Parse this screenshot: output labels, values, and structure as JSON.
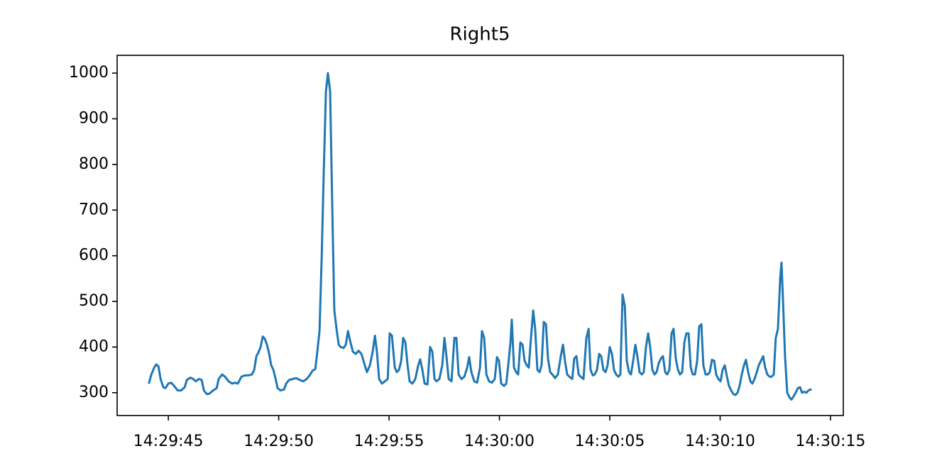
{
  "chart_data": {
    "type": "line",
    "title": "Right5",
    "color": "#1f77b4",
    "grid": false,
    "x": [
      52184.13,
      52184.23,
      52184.36,
      52184.45,
      52184.55,
      52184.65,
      52184.77,
      52184.87,
      52185.0,
      52185.13,
      52185.26,
      52185.42,
      52185.58,
      52185.74,
      52185.84,
      52186.0,
      52186.13,
      52186.25,
      52186.38,
      52186.51,
      52186.61,
      52186.74,
      52186.86,
      52187.03,
      52187.19,
      52187.28,
      52187.44,
      52187.57,
      52187.73,
      52187.89,
      52188.02,
      52188.15,
      52188.31,
      52188.47,
      52188.63,
      52188.79,
      52188.89,
      52188.99,
      52189.08,
      52189.18,
      52189.28,
      52189.37,
      52189.47,
      52189.57,
      52189.66,
      52189.76,
      52189.86,
      52189.95,
      52190.08,
      52190.24,
      52190.34,
      52190.47,
      52190.63,
      52190.79,
      52190.95,
      52191.11,
      52191.27,
      52191.43,
      52191.53,
      52191.66,
      52191.75,
      52191.85,
      52191.95,
      52192.04,
      52192.14,
      52192.23,
      52192.33,
      52192.43,
      52192.52,
      52192.62,
      52192.72,
      52192.81,
      52192.94,
      52193.04,
      52193.14,
      52193.23,
      52193.36,
      52193.49,
      52193.62,
      52193.75,
      52193.87,
      52194.0,
      52194.13,
      52194.26,
      52194.36,
      52194.45,
      52194.55,
      52194.68,
      52194.81,
      52194.94,
      52195.03,
      52195.13,
      52195.26,
      52195.35,
      52195.45,
      52195.55,
      52195.64,
      52195.74,
      52195.84,
      52195.93,
      52196.06,
      52196.19,
      52196.32,
      52196.41,
      52196.51,
      52196.61,
      52196.74,
      52196.86,
      52196.96,
      52197.06,
      52197.15,
      52197.28,
      52197.41,
      52197.51,
      52197.6,
      52197.7,
      52197.83,
      52197.96,
      52198.05,
      52198.15,
      52198.28,
      52198.41,
      52198.54,
      52198.63,
      52198.73,
      52198.86,
      52198.99,
      52199.12,
      52199.21,
      52199.31,
      52199.41,
      52199.53,
      52199.66,
      52199.79,
      52199.89,
      52199.98,
      52200.08,
      52200.21,
      52200.31,
      52200.4,
      52200.5,
      52200.56,
      52200.66,
      52200.76,
      52200.85,
      52200.95,
      52201.05,
      52201.14,
      52201.24,
      52201.33,
      52201.43,
      52201.53,
      52201.62,
      52201.72,
      52201.82,
      52201.91,
      52202.01,
      52202.11,
      52202.2,
      52202.3,
      52202.4,
      52202.52,
      52202.65,
      52202.78,
      52202.88,
      52202.97,
      52203.07,
      52203.17,
      52203.3,
      52203.39,
      52203.49,
      52203.59,
      52203.68,
      52203.81,
      52203.94,
      52204.04,
      52204.13,
      52204.23,
      52204.32,
      52204.42,
      52204.52,
      52204.61,
      52204.71,
      52204.81,
      52204.9,
      52205.0,
      52205.1,
      52205.19,
      52205.29,
      52205.39,
      52205.48,
      52205.58,
      52205.68,
      52205.77,
      52205.87,
      52205.96,
      52206.06,
      52206.16,
      52206.25,
      52206.35,
      52206.45,
      52206.54,
      52206.64,
      52206.74,
      52206.83,
      52206.93,
      52207.03,
      52207.12,
      52207.22,
      52207.32,
      52207.41,
      52207.51,
      52207.6,
      52207.7,
      52207.8,
      52207.89,
      52207.99,
      52208.09,
      52208.18,
      52208.28,
      52208.38,
      52208.47,
      52208.57,
      52208.67,
      52208.76,
      52208.86,
      52208.96,
      52209.05,
      52209.15,
      52209.24,
      52209.34,
      52209.44,
      52209.53,
      52209.63,
      52209.73,
      52209.82,
      52209.92,
      52210.02,
      52210.11,
      52210.21,
      52210.31,
      52210.4,
      52210.5,
      52210.6,
      52210.69,
      52210.79,
      52210.88,
      52210.98,
      52211.08,
      52211.17,
      52211.27,
      52211.37,
      52211.46,
      52211.56,
      52211.66,
      52211.75,
      52211.85,
      52211.95,
      52212.04,
      52212.14,
      52212.24,
      52212.33,
      52212.43,
      52212.52,
      52212.62,
      52212.72,
      52212.78,
      52212.85,
      52212.94,
      52213.04,
      52213.14,
      52213.23,
      52213.33,
      52213.42,
      52213.52,
      52213.62,
      52213.71,
      52213.81,
      52213.91,
      52214.0,
      52214.1
    ],
    "values": [
      322,
      340,
      355,
      362,
      358,
      330,
      312,
      310,
      320,
      322,
      315,
      305,
      305,
      312,
      328,
      333,
      330,
      325,
      330,
      328,
      305,
      297,
      298,
      305,
      310,
      330,
      340,
      335,
      325,
      320,
      322,
      320,
      335,
      338,
      338,
      340,
      350,
      380,
      388,
      400,
      423,
      418,
      405,
      385,
      360,
      350,
      330,
      310,
      305,
      307,
      320,
      328,
      330,
      332,
      328,
      325,
      330,
      340,
      348,
      352,
      390,
      435,
      600,
      780,
      960,
      1000,
      960,
      700,
      480,
      440,
      405,
      400,
      398,
      405,
      435,
      415,
      390,
      385,
      392,
      385,
      365,
      345,
      360,
      390,
      425,
      390,
      330,
      320,
      325,
      330,
      430,
      425,
      355,
      345,
      350,
      370,
      420,
      410,
      360,
      325,
      320,
      330,
      360,
      373,
      350,
      320,
      318,
      400,
      390,
      330,
      325,
      330,
      360,
      420,
      380,
      330,
      325,
      420,
      420,
      340,
      330,
      335,
      355,
      378,
      345,
      325,
      322,
      355,
      435,
      420,
      340,
      325,
      322,
      330,
      378,
      370,
      320,
      315,
      320,
      360,
      410,
      460,
      355,
      345,
      340,
      410,
      405,
      370,
      360,
      355,
      420,
      480,
      440,
      350,
      345,
      360,
      455,
      450,
      375,
      345,
      340,
      332,
      340,
      380,
      405,
      370,
      340,
      335,
      330,
      375,
      380,
      340,
      335,
      330,
      420,
      440,
      350,
      338,
      340,
      350,
      385,
      380,
      350,
      345,
      360,
      400,
      385,
      350,
      340,
      335,
      340,
      515,
      490,
      370,
      345,
      340,
      370,
      405,
      380,
      345,
      340,
      345,
      400,
      430,
      400,
      350,
      340,
      345,
      365,
      375,
      380,
      345,
      340,
      350,
      430,
      440,
      375,
      350,
      340,
      345,
      410,
      430,
      430,
      355,
      340,
      340,
      370,
      445,
      450,
      360,
      340,
      340,
      345,
      372,
      370,
      340,
      330,
      325,
      350,
      360,
      335,
      315,
      305,
      297,
      295,
      300,
      315,
      340,
      360,
      372,
      345,
      325,
      320,
      330,
      345,
      360,
      370,
      380,
      355,
      340,
      335,
      335,
      340,
      420,
      440,
      550,
      585,
      500,
      380,
      300,
      290,
      285,
      292,
      300,
      310,
      312,
      300,
      302,
      300,
      305,
      307
    ],
    "xlim": [
      52182.68,
      52215.58
    ],
    "xticks": [
      {
        "value": 52185,
        "label": "14:29:45"
      },
      {
        "value": 52190,
        "label": "14:29:50"
      },
      {
        "value": 52195,
        "label": "14:29:55"
      },
      {
        "value": 52200,
        "label": "14:30:00"
      },
      {
        "value": 52205,
        "label": "14:30:05"
      },
      {
        "value": 52210,
        "label": "14:30:10"
      },
      {
        "value": 52215,
        "label": "14:30:15"
      }
    ],
    "ylim": [
      250,
      1039
    ],
    "yticks": [
      300,
      400,
      500,
      600,
      700,
      800,
      900,
      1000
    ]
  }
}
